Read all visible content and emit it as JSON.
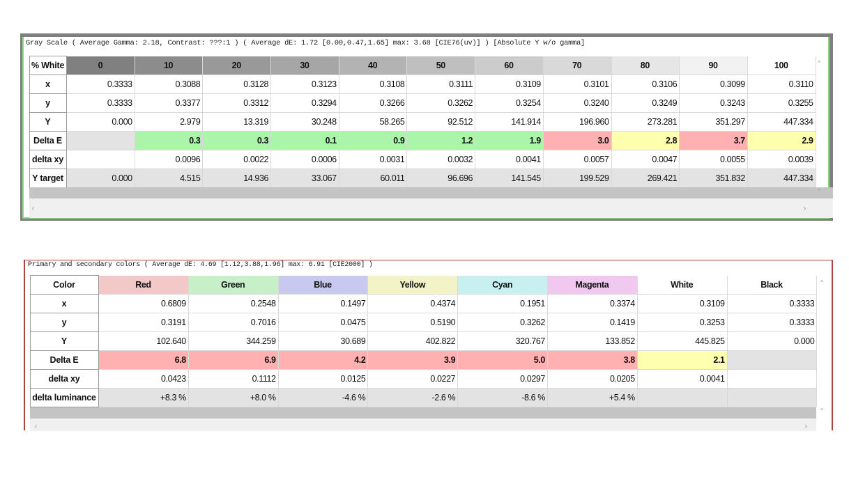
{
  "gray_scale": {
    "title": "Gray Scale ( Average Gamma: 2.18, Contrast: ???:1 ) ( Average dE: 1.72 [0.00,0.47,1.65] max: 3.68 [CIE76(uv)] ) [Absolute Y w/o gamma]",
    "header_label": "% White",
    "columns": [
      {
        "label": "0",
        "bg": "#808080"
      },
      {
        "label": "10",
        "bg": "#8c8c8c"
      },
      {
        "label": "20",
        "bg": "#999999"
      },
      {
        "label": "30",
        "bg": "#a6a6a6"
      },
      {
        "label": "40",
        "bg": "#b3b3b3"
      },
      {
        "label": "50",
        "bg": "#bfbfbf"
      },
      {
        "label": "60",
        "bg": "#cccccc"
      },
      {
        "label": "70",
        "bg": "#d9d9d9"
      },
      {
        "label": "80",
        "bg": "#e6e6e6"
      },
      {
        "label": "90",
        "bg": "#f2f2f2"
      },
      {
        "label": "100",
        "bg": "#ffffff"
      }
    ],
    "rows": [
      {
        "label": "x",
        "cells": [
          "0.3333",
          "0.3088",
          "0.3128",
          "0.3123",
          "0.3108",
          "0.3111",
          "0.3109",
          "0.3101",
          "0.3106",
          "0.3099",
          "0.3110"
        ]
      },
      {
        "label": "y",
        "cells": [
          "0.3333",
          "0.3377",
          "0.3312",
          "0.3294",
          "0.3266",
          "0.3262",
          "0.3254",
          "0.3240",
          "0.3249",
          "0.3243",
          "0.3255"
        ]
      },
      {
        "label": "Y",
        "cells": [
          "0.000",
          "2.979",
          "13.319",
          "30.248",
          "58.265",
          "92.512",
          "141.914",
          "196.960",
          "273.281",
          "351.297",
          "447.334"
        ]
      },
      {
        "label": "Delta E",
        "bold": true,
        "shaded": true,
        "cells": [
          "",
          "0.3",
          "0.3",
          "0.1",
          "0.9",
          "1.2",
          "1.9",
          "3.0",
          "2.8",
          "3.7",
          "2.9"
        ],
        "colors": [
          "#e3e3e3",
          "#aaf5aa",
          "#aaf5aa",
          "#aaf5aa",
          "#aaf5aa",
          "#aaf5aa",
          "#aaf5aa",
          "#ffb0b0",
          "#ffffb0",
          "#ffb0b0",
          "#ffffb0"
        ]
      },
      {
        "label": "delta xy",
        "cells": [
          "",
          "0.0096",
          "0.0022",
          "0.0006",
          "0.0031",
          "0.0032",
          "0.0041",
          "0.0057",
          "0.0047",
          "0.0055",
          "0.0039"
        ]
      },
      {
        "label": "Y target",
        "shaded": true,
        "cells": [
          "0.000",
          "4.515",
          "14.936",
          "33.067",
          "60.011",
          "96.696",
          "141.545",
          "199.529",
          "269.421",
          "351.832",
          "447.334"
        ]
      }
    ]
  },
  "primary": {
    "title": "Primary and secondary colors ( Average dE: 4.69 [1.12,3.88,1.96] max: 6.91 [CIE2000] )",
    "header_label": "Color",
    "columns": [
      {
        "label": "Red",
        "bg": "#f3c8c8"
      },
      {
        "label": "Green",
        "bg": "#c8f0c8"
      },
      {
        "label": "Blue",
        "bg": "#c8c8f0"
      },
      {
        "label": "Yellow",
        "bg": "#f3f3c8"
      },
      {
        "label": "Cyan",
        "bg": "#c8f0f0"
      },
      {
        "label": "Magenta",
        "bg": "#f0c8f0"
      },
      {
        "label": "White",
        "bg": "#ffffff"
      },
      {
        "label": "Black",
        "bg": "#ffffff"
      }
    ],
    "rows": [
      {
        "label": "x",
        "cells": [
          "0.6809",
          "0.2548",
          "0.1497",
          "0.4374",
          "0.1951",
          "0.3374",
          "0.3109",
          "0.3333"
        ]
      },
      {
        "label": "y",
        "cells": [
          "0.3191",
          "0.7016",
          "0.0475",
          "0.5190",
          "0.3262",
          "0.1419",
          "0.3253",
          "0.3333"
        ]
      },
      {
        "label": "Y",
        "cells": [
          "102.640",
          "344.259",
          "30.689",
          "402.822",
          "320.767",
          "133.852",
          "445.825",
          "0.000"
        ]
      },
      {
        "label": "Delta E",
        "bold": true,
        "shaded": true,
        "cells": [
          "6.8",
          "6.9",
          "4.2",
          "3.9",
          "5.0",
          "3.8",
          "2.1",
          ""
        ],
        "colors": [
          "#ffb0b0",
          "#ffb0b0",
          "#ffb0b0",
          "#ffb0b0",
          "#ffb0b0",
          "#ffb0b0",
          "#ffffb0",
          "#e3e3e3"
        ]
      },
      {
        "label": "delta xy",
        "cells": [
          "0.0423",
          "0.1112",
          "0.0125",
          "0.0227",
          "0.0297",
          "0.0205",
          "0.0041",
          ""
        ]
      },
      {
        "label": "delta luminance",
        "shaded": true,
        "cells": [
          "+8.3 %",
          "+8.0 %",
          "-4.6 %",
          "-2.6 %",
          "-8.6 %",
          "+5.4 %",
          "",
          ""
        ]
      }
    ]
  },
  "icons": {
    "scroll_up": "▲",
    "scroll_down": "▼",
    "scroll_left": "◀",
    "scroll_right": "▶"
  }
}
